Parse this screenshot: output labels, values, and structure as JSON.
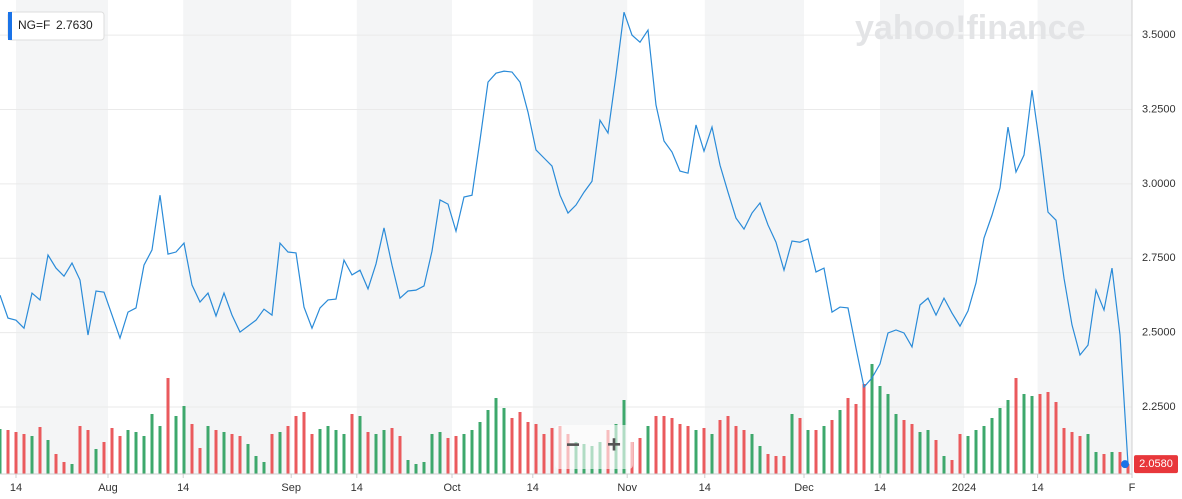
{
  "chart_data": {
    "type": "line",
    "ticker": "NG=F",
    "quote": "2.7630",
    "watermark": "yahoo!finance",
    "zoom_out": "−",
    "zoom_in": "+",
    "x": [
      0,
      1,
      2,
      3,
      4,
      5,
      6,
      7,
      8,
      9,
      10,
      11,
      12,
      13,
      14,
      15,
      16,
      17,
      18,
      19,
      20,
      21,
      22,
      23,
      24,
      25,
      26,
      27,
      28,
      29,
      30,
      31,
      32,
      33,
      34,
      35,
      36,
      37,
      38,
      39,
      40,
      41,
      42,
      43,
      44,
      45,
      46,
      47,
      48,
      49,
      50,
      51,
      52,
      53,
      54,
      55,
      56,
      57,
      58,
      59,
      60,
      61,
      62,
      63,
      64,
      65,
      66,
      67,
      68,
      69,
      70,
      71,
      72,
      73,
      74,
      75,
      76,
      77,
      78,
      79,
      80,
      81,
      82,
      83,
      84,
      85,
      86,
      87,
      88,
      89,
      90,
      91,
      92,
      93,
      94,
      95,
      96,
      97,
      98,
      99,
      100,
      101,
      102,
      103,
      104,
      105,
      106,
      107,
      108,
      109,
      110,
      111,
      112,
      113,
      114,
      115,
      116,
      117,
      118,
      119,
      120,
      121,
      122,
      123,
      124,
      125,
      126,
      127,
      128,
      129,
      130,
      131,
      132,
      133,
      134,
      135,
      136,
      137,
      138,
      139,
      140,
      141
    ],
    "series": [
      {
        "name": "NG=F",
        "color": "#2a8bd8",
        "values": [
          2.626,
          2.549,
          2.542,
          2.515,
          2.633,
          2.61,
          2.761,
          2.717,
          2.69,
          2.734,
          2.677,
          2.492,
          2.64,
          2.636,
          2.559,
          2.482,
          2.569,
          2.583,
          2.727,
          2.778,
          2.962,
          2.764,
          2.771,
          2.801,
          2.66,
          2.603,
          2.633,
          2.556,
          2.633,
          2.559,
          2.502,
          2.522,
          2.542,
          2.579,
          2.559,
          2.801,
          2.771,
          2.768,
          2.586,
          2.515,
          2.583,
          2.61,
          2.613,
          2.744,
          2.694,
          2.71,
          2.647,
          2.731,
          2.852,
          2.727,
          2.616,
          2.64,
          2.643,
          2.657,
          2.774,
          2.946,
          2.932,
          2.841,
          2.956,
          2.962,
          3.147,
          3.342,
          3.372,
          3.379,
          3.376,
          3.342,
          3.241,
          3.114,
          3.087,
          3.06,
          2.962,
          2.902,
          2.929,
          2.972,
          3.009,
          3.214,
          3.171,
          3.366,
          3.577,
          3.5,
          3.476,
          3.517,
          3.265,
          3.144,
          3.107,
          3.043,
          3.036,
          3.198,
          3.11,
          3.191,
          3.063,
          2.972,
          2.885,
          2.848,
          2.902,
          2.936,
          2.862,
          2.804,
          2.71,
          2.808,
          2.804,
          2.815,
          2.704,
          2.717,
          2.569,
          2.586,
          2.583,
          2.448,
          2.317,
          2.348,
          2.395,
          2.499,
          2.509,
          2.499,
          2.452,
          2.593,
          2.616,
          2.559,
          2.616,
          2.566,
          2.522,
          2.573,
          2.667,
          2.818,
          2.895,
          2.986,
          3.191,
          3.04,
          3.097,
          3.315,
          3.124,
          2.905,
          2.878,
          2.683,
          2.526,
          2.425,
          2.458,
          2.643,
          2.576,
          2.717,
          2.492,
          2.058
        ]
      }
    ],
    "last_label": "2.0580",
    "volume": {
      "up_color": "#3ea86c",
      "down_color": "#ea5a5d",
      "values": [
        45,
        44,
        42,
        40,
        38,
        47,
        34,
        20,
        12,
        10,
        48,
        44,
        25,
        32,
        46,
        38,
        44,
        42,
        38,
        60,
        48,
        96,
        58,
        68,
        50,
        26,
        48,
        44,
        42,
        40,
        38,
        30,
        18,
        12,
        40,
        42,
        48,
        58,
        62,
        40,
        45,
        48,
        44,
        40,
        60,
        58,
        42,
        40,
        44,
        46,
        38,
        14,
        10,
        12,
        40,
        42,
        36,
        38,
        40,
        44,
        52,
        64,
        76,
        66,
        56,
        62,
        52,
        50,
        40,
        46,
        48,
        40,
        32,
        30,
        28,
        32,
        44,
        50,
        74,
        32,
        36,
        48,
        58,
        58,
        56,
        50,
        48,
        44,
        46,
        40,
        54,
        58,
        48,
        44,
        40,
        28,
        20,
        18,
        18,
        60,
        56,
        44,
        44,
        48,
        54,
        64,
        76,
        70,
        90,
        110,
        88,
        80,
        60,
        54,
        50,
        42,
        44,
        34,
        18,
        14,
        40,
        38,
        44,
        48,
        56,
        66,
        74,
        96,
        80,
        78,
        80,
        82,
        72,
        46,
        42,
        38,
        40,
        22,
        20,
        22,
        22,
        10
      ]
    },
    "xlim": [
      0,
      141.5
    ],
    "xticks": [
      {
        "value": 2,
        "label": "14"
      },
      {
        "value": 13.5,
        "label": "Aug"
      },
      {
        "value": 22.9,
        "label": "14"
      },
      {
        "value": 36.4,
        "label": "Sep"
      },
      {
        "value": 44.6,
        "label": "14"
      },
      {
        "value": 56.5,
        "label": "Oct"
      },
      {
        "value": 66.6,
        "label": "14"
      },
      {
        "value": 78.4,
        "label": "Nov"
      },
      {
        "value": 88.1,
        "label": "14"
      },
      {
        "value": 100.5,
        "label": "Dec"
      },
      {
        "value": 110,
        "label": "14"
      },
      {
        "value": 120.5,
        "label": "2024"
      },
      {
        "value": 129.7,
        "label": "14"
      },
      {
        "value": 141.5,
        "label": "F"
      }
    ],
    "ylim": [
      2.025,
      3.618
    ],
    "yticks": [
      {
        "value": 2.25,
        "label": "2.2500"
      },
      {
        "value": 2.5,
        "label": "2.5000"
      },
      {
        "value": 2.75,
        "label": "2.7500"
      },
      {
        "value": 3.0,
        "label": "3.0000"
      },
      {
        "value": 3.25,
        "label": "3.2500"
      },
      {
        "value": 3.5,
        "label": "3.5000"
      }
    ],
    "grid": true,
    "band_color": "#f4f5f6"
  }
}
